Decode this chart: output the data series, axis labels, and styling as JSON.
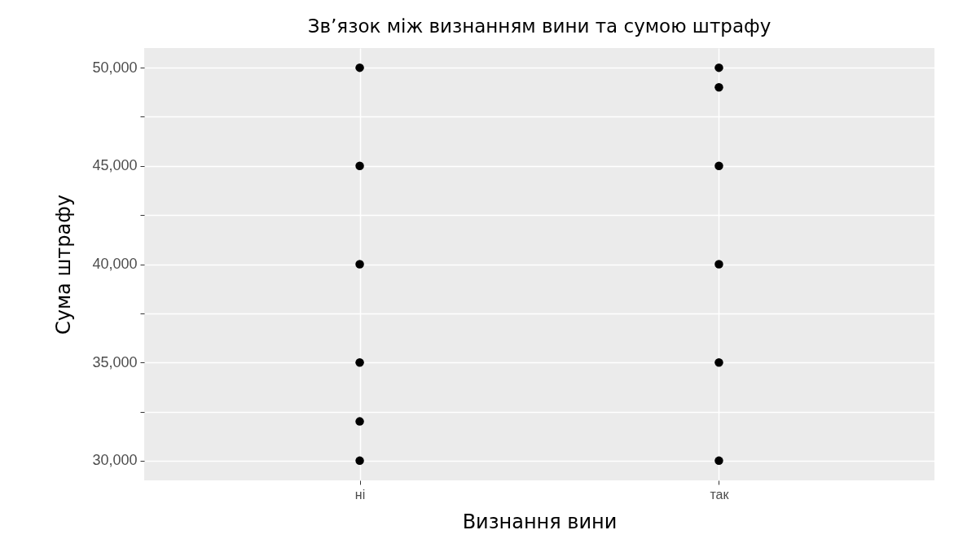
{
  "chart_data": {
    "type": "scatter",
    "title": "Зв’язок між визнанням вини та сумою штрафу",
    "xlabel": "Визнання вини",
    "ylabel": "Сума штрафу",
    "categories": [
      "ні",
      "так"
    ],
    "series": [
      {
        "color": "#000000",
        "x": [
          "ні",
          "ні",
          "ні",
          "ні",
          "ні",
          "ні",
          "так",
          "так",
          "так",
          "так",
          "так",
          "так"
        ],
        "values": [
          50000,
          45000,
          40000,
          35000,
          32000,
          30000,
          50000,
          49000,
          45000,
          40000,
          35000,
          30000
        ]
      }
    ],
    "ylim": [
      29000,
      51000
    ],
    "yticks": [
      {
        "value": 30000,
        "label": "30,000"
      },
      {
        "value": 32500,
        "label": null
      },
      {
        "value": 35000,
        "label": "35,000"
      },
      {
        "value": 37500,
        "label": null
      },
      {
        "value": 40000,
        "label": "40,000"
      },
      {
        "value": 42500,
        "label": null
      },
      {
        "value": 45000,
        "label": "45,000"
      },
      {
        "value": 47500,
        "label": null
      },
      {
        "value": 50000,
        "label": "50,000"
      }
    ],
    "grid": true,
    "marker": "circle"
  }
}
